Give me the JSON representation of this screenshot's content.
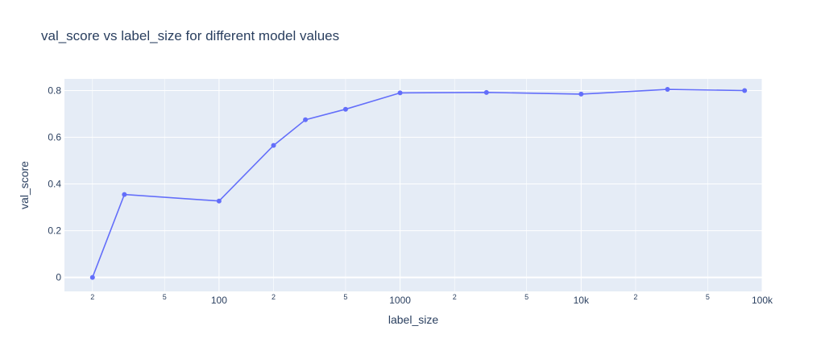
{
  "chart_data": {
    "type": "line",
    "title": "val_score vs label_size for different model values",
    "xlabel": "label_size",
    "ylabel": "val_score",
    "x_scale": "log",
    "xlim": [
      14,
      100000
    ],
    "ylim": [
      -0.06,
      0.85
    ],
    "x_ticks": [
      {
        "value": 20,
        "label": "2",
        "major": false
      },
      {
        "value": 50,
        "label": "5",
        "major": false
      },
      {
        "value": 100,
        "label": "100",
        "major": true
      },
      {
        "value": 200,
        "label": "2",
        "major": false
      },
      {
        "value": 500,
        "label": "5",
        "major": false
      },
      {
        "value": 1000,
        "label": "1000",
        "major": true
      },
      {
        "value": 2000,
        "label": "2",
        "major": false
      },
      {
        "value": 5000,
        "label": "5",
        "major": false
      },
      {
        "value": 10000,
        "label": "10k",
        "major": true
      },
      {
        "value": 20000,
        "label": "2",
        "major": false
      },
      {
        "value": 50000,
        "label": "5",
        "major": false
      },
      {
        "value": 100000,
        "label": "100k",
        "major": true
      }
    ],
    "y_ticks": [
      {
        "value": 0,
        "label": "0"
      },
      {
        "value": 0.2,
        "label": "0.2"
      },
      {
        "value": 0.4,
        "label": "0.4"
      },
      {
        "value": 0.6,
        "label": "0.6"
      },
      {
        "value": 0.8,
        "label": "0.8"
      }
    ],
    "series": [
      {
        "x": [
          20,
          30,
          100,
          200,
          300,
          500,
          1000,
          3000,
          10000,
          30000,
          80000
        ],
        "y": [
          0.0,
          0.355,
          0.327,
          0.565,
          0.675,
          0.72,
          0.79,
          0.792,
          0.785,
          0.805,
          0.8
        ],
        "color": "#636efa"
      }
    ],
    "grid": true,
    "plot_bg": "#e5ecf6",
    "grid_color": "#ffffff"
  }
}
